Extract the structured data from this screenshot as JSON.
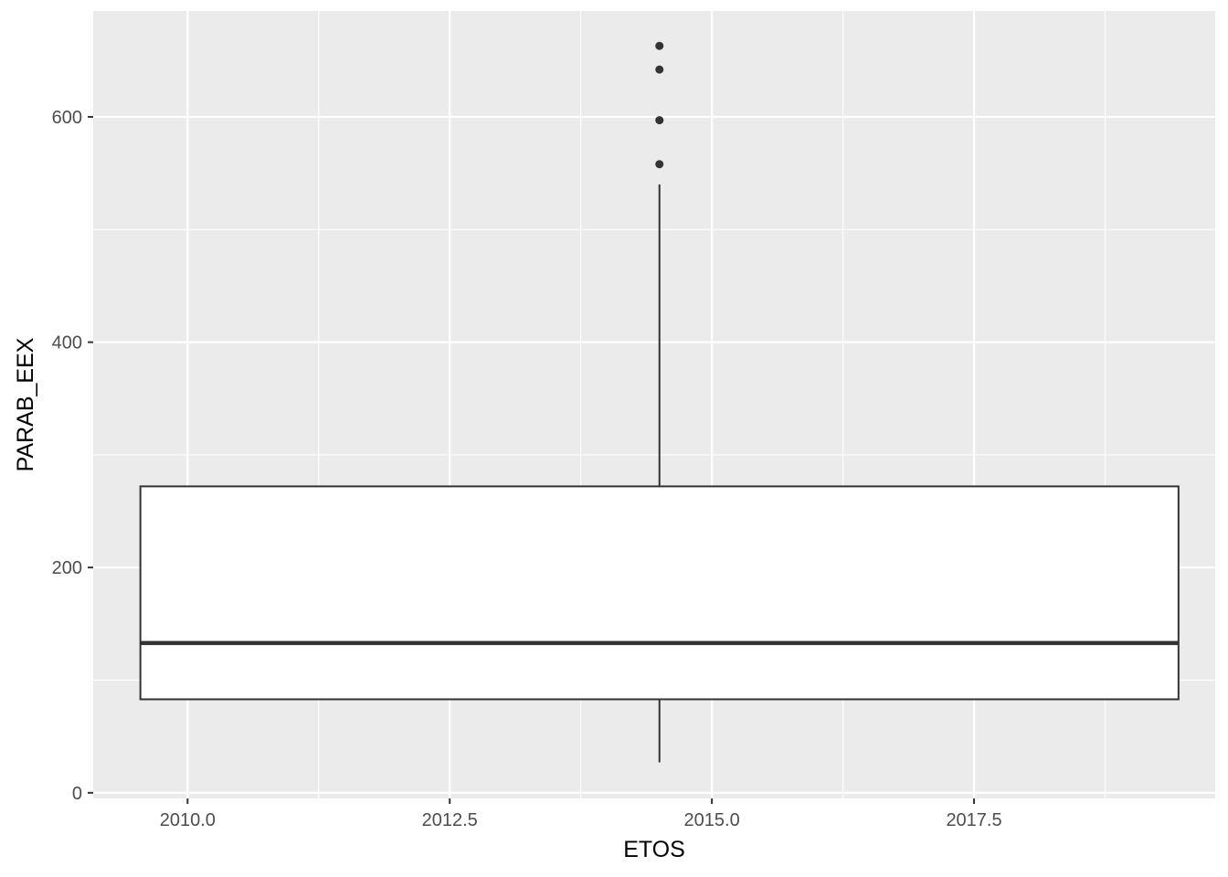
{
  "chart_data": {
    "type": "boxplot",
    "title": "",
    "xlabel": "ETOS",
    "ylabel": "PARAB_EEX",
    "xlim": [
      2009.1,
      2019.8
    ],
    "ylim": [
      -5,
      694
    ],
    "x_ticks": [
      2010.0,
      2012.5,
      2015.0,
      2017.5
    ],
    "x_tick_labels": [
      "2010.0",
      "2012.5",
      "2015.0",
      "2017.5"
    ],
    "y_ticks": [
      0,
      200,
      400,
      600
    ],
    "y_tick_labels": [
      "0",
      "200",
      "400",
      "600"
    ],
    "grid": true,
    "colors": {
      "panel_background": "#ebebeb",
      "grid": "#ffffff",
      "box_fill": "#ffffff",
      "box_stroke": "#333333",
      "outlier": "#333333",
      "tick_mark": "#333333"
    },
    "box": {
      "x_left": 2009.55,
      "x_right": 2019.45,
      "x_center": 2014.5,
      "whisker_low": 27,
      "q1": 83,
      "median": 133,
      "q3": 272,
      "whisker_high": 540,
      "outliers": [
        558,
        597,
        642,
        663
      ]
    }
  }
}
